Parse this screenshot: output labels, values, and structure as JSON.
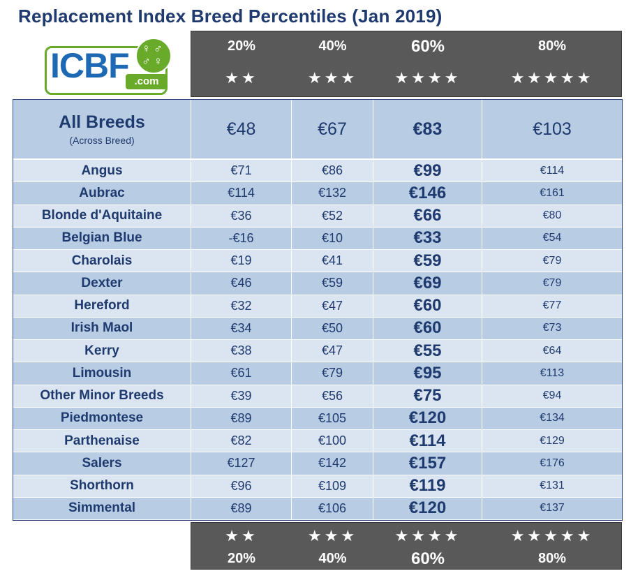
{
  "title": "Replacement Index Breed Percentiles (Jan 2019)",
  "logo": {
    "text": "ICBF",
    "suffix": ".com"
  },
  "percentiles": [
    {
      "label": "20%",
      "stars": "★★"
    },
    {
      "label": "40%",
      "stars": "★★★"
    },
    {
      "label": "60%",
      "stars": "★★★★"
    },
    {
      "label": "80%",
      "stars": "★★★★★"
    }
  ],
  "all_breeds": {
    "name": "All Breeds",
    "subtitle": "(Across Breed)",
    "values": [
      "€48",
      "€67",
      "€83",
      "€103"
    ]
  },
  "breeds": [
    {
      "name": "Angus",
      "values": [
        "€71",
        "€86",
        "€99",
        "€114"
      ]
    },
    {
      "name": "Aubrac",
      "values": [
        "€114",
        "€132",
        "€146",
        "€161"
      ]
    },
    {
      "name": "Blonde d'Aquitaine",
      "values": [
        "€36",
        "€52",
        "€66",
        "€80"
      ]
    },
    {
      "name": "Belgian Blue",
      "values": [
        "-€16",
        "€10",
        "€33",
        "€54"
      ]
    },
    {
      "name": "Charolais",
      "values": [
        "€19",
        "€41",
        "€59",
        "€79"
      ]
    },
    {
      "name": "Dexter",
      "values": [
        "€46",
        "€59",
        "€69",
        "€79"
      ]
    },
    {
      "name": "Hereford",
      "values": [
        "€32",
        "€47",
        "€60",
        "€77"
      ]
    },
    {
      "name": "Irish Maol",
      "values": [
        "€34",
        "€50",
        "€60",
        "€73"
      ]
    },
    {
      "name": "Kerry",
      "values": [
        "€38",
        "€47",
        "€55",
        "€64"
      ]
    },
    {
      "name": "Limousin",
      "values": [
        "€61",
        "€79",
        "€95",
        "€113"
      ]
    },
    {
      "name": "Other Minor Breeds",
      "values": [
        "€39",
        "€56",
        "€75",
        "€94"
      ]
    },
    {
      "name": "Piedmontese",
      "values": [
        "€89",
        "€105",
        "€120",
        "€134"
      ]
    },
    {
      "name": "Parthenaise",
      "values": [
        "€82",
        "€100",
        "€114",
        "€129"
      ]
    },
    {
      "name": "Salers",
      "values": [
        "€127",
        "€142",
        "€157",
        "€176"
      ]
    },
    {
      "name": "Shorthorn",
      "values": [
        "€96",
        "€109",
        "€119",
        "€131"
      ]
    },
    {
      "name": "Simmental",
      "values": [
        "€89",
        "€106",
        "€120",
        "€137"
      ]
    }
  ],
  "colors": {
    "title": "#1f3a6e",
    "header_band": "#595959",
    "row_light": "#dbe5f1",
    "row_dark": "#b8cce4",
    "logo_green": "#6aaa2a",
    "logo_blue": "#1e69b4"
  }
}
